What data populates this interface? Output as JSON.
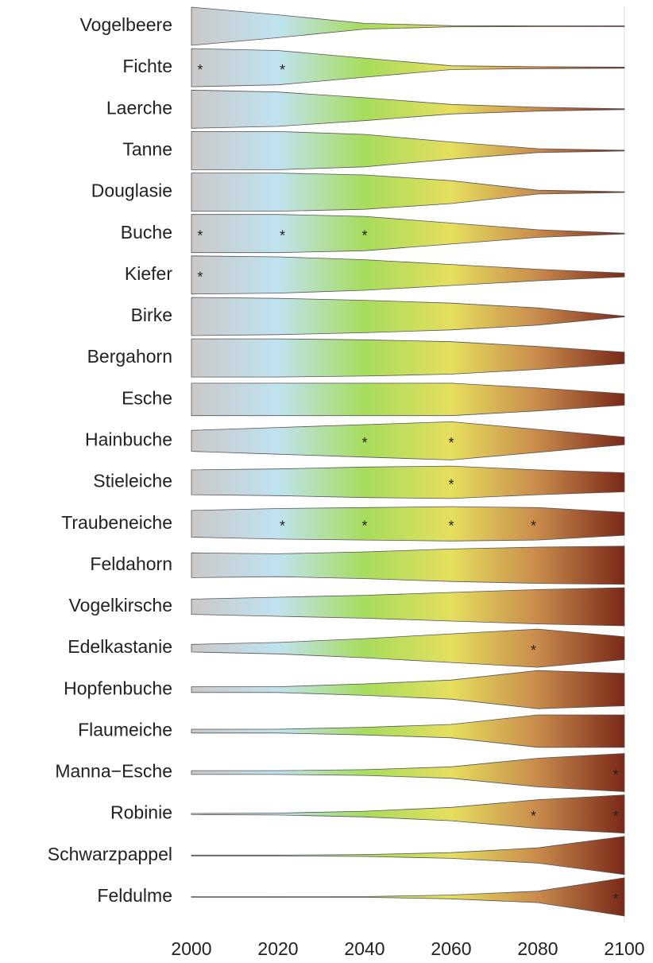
{
  "chart_data": {
    "type": "violin",
    "x": [
      2000,
      2020,
      2040,
      2060,
      2080,
      2100
    ],
    "xlim": [
      2000,
      2100
    ],
    "xticks": [
      2000,
      2020,
      2040,
      2060,
      2080,
      2100
    ],
    "ylim": [
      0,
      1
    ],
    "symbol": "*",
    "gradient": [
      "#c9c9c9",
      "#bfe2f0",
      "#a7dc5c",
      "#e6de5e",
      "#c98a4c",
      "#7a2818"
    ],
    "series": [
      {
        "name": "Vogelbeere",
        "values": [
          1,
          0.6,
          0.15,
          0.03,
          0.02,
          0.02
        ],
        "significant": []
      },
      {
        "name": "Fichte",
        "values": [
          1,
          0.9,
          0.5,
          0.1,
          0.05,
          0.03
        ],
        "significant": [
          2002,
          2021
        ]
      },
      {
        "name": "Laerche",
        "values": [
          1,
          0.9,
          0.6,
          0.25,
          0.1,
          0.02
        ],
        "significant": []
      },
      {
        "name": "Tanne",
        "values": [
          1,
          1,
          0.85,
          0.45,
          0.1,
          0.02
        ],
        "significant": []
      },
      {
        "name": "Douglasie",
        "values": [
          1,
          1,
          0.9,
          0.6,
          0.1,
          0.02
        ],
        "significant": []
      },
      {
        "name": "Buche",
        "values": [
          1,
          1,
          0.9,
          0.55,
          0.2,
          0.02
        ],
        "significant": [
          2002,
          2021,
          2040
        ]
      },
      {
        "name": "Kiefer",
        "values": [
          1,
          0.95,
          0.8,
          0.55,
          0.3,
          0.1
        ],
        "significant": [
          2002
        ]
      },
      {
        "name": "Birke",
        "values": [
          1,
          0.95,
          0.85,
          0.7,
          0.45,
          0.02
        ],
        "significant": []
      },
      {
        "name": "Bergahorn",
        "values": [
          1,
          1,
          0.95,
          0.85,
          0.6,
          0.3
        ],
        "significant": []
      },
      {
        "name": "Esche",
        "values": [
          0.85,
          0.85,
          0.85,
          0.85,
          0.6,
          0.3
        ],
        "significant": []
      },
      {
        "name": "Hainbuche",
        "values": [
          0.55,
          0.7,
          0.85,
          1,
          0.6,
          0.2
        ],
        "significant": [
          2040,
          2060
        ]
      },
      {
        "name": "Stieleiche",
        "values": [
          0.65,
          0.7,
          0.8,
          0.85,
          0.65,
          0.5
        ],
        "significant": [
          2060
        ]
      },
      {
        "name": "Traubeneiche",
        "values": [
          0.7,
          0.8,
          0.85,
          0.9,
          0.85,
          0.6
        ],
        "significant": [
          2021,
          2040,
          2060,
          2079
        ]
      },
      {
        "name": "Feldahorn",
        "values": [
          0.65,
          0.6,
          0.7,
          0.85,
          0.95,
          1
        ],
        "significant": []
      },
      {
        "name": "Vogelkirsche",
        "values": [
          0.4,
          0.5,
          0.6,
          0.75,
          0.9,
          1
        ],
        "significant": []
      },
      {
        "name": "Edelkastanie",
        "values": [
          0.2,
          0.3,
          0.5,
          0.75,
          1,
          0.6
        ],
        "significant": [
          2079
        ]
      },
      {
        "name": "Hopfenbuche",
        "values": [
          0.15,
          0.15,
          0.3,
          0.5,
          1,
          0.85
        ],
        "significant": []
      },
      {
        "name": "Flaumeiche",
        "values": [
          0.1,
          0.1,
          0.2,
          0.35,
          0.85,
          0.85
        ],
        "significant": []
      },
      {
        "name": "Manna−Esche",
        "values": [
          0.1,
          0.1,
          0.15,
          0.3,
          0.75,
          1
        ],
        "significant": [
          2098
        ]
      },
      {
        "name": "Robinie",
        "values": [
          0.03,
          0.05,
          0.15,
          0.35,
          0.75,
          1
        ],
        "significant": [
          2079,
          2098
        ]
      },
      {
        "name": "Schwarzpappel",
        "values": [
          0.02,
          0.02,
          0.05,
          0.15,
          0.4,
          1
        ],
        "significant": []
      },
      {
        "name": "Feldulme",
        "values": [
          0.02,
          0.02,
          0.02,
          0.1,
          0.3,
          1
        ],
        "significant": [
          2098
        ]
      }
    ]
  }
}
